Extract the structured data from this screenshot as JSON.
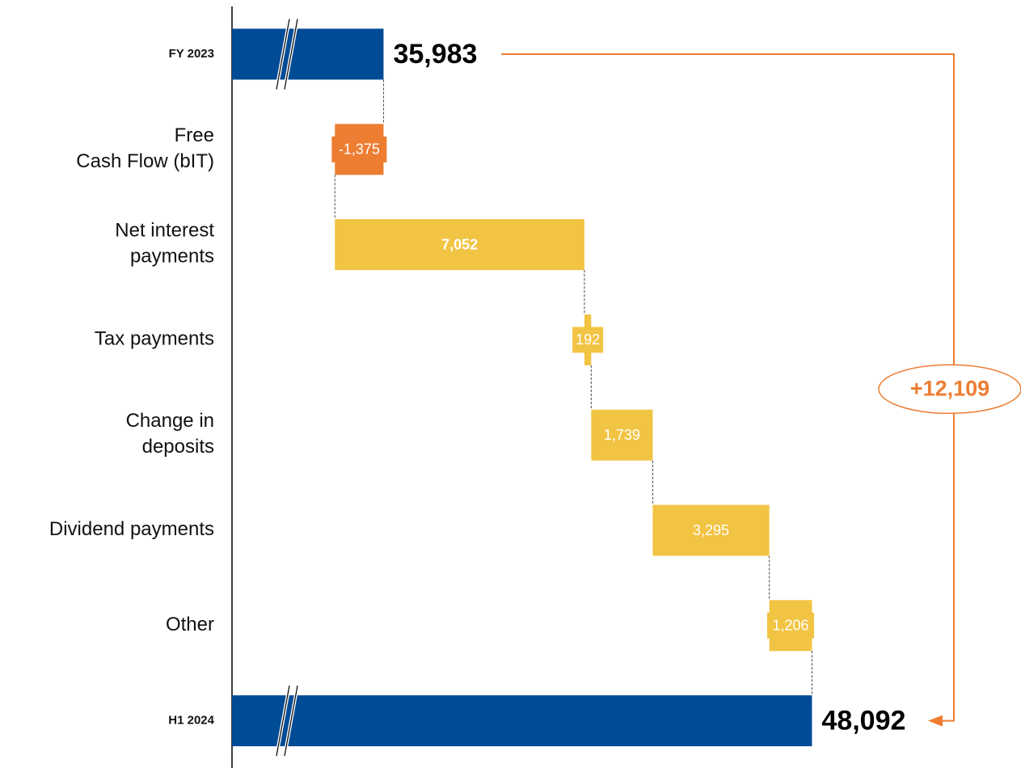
{
  "chart_data": {
    "type": "waterfall",
    "orientation": "horizontal",
    "categories": [
      "FY 2023",
      "Free\nCash Flow (bIT)",
      "Net interest\npayments",
      "Tax payments",
      "Change in\ndeposits",
      "Dividend payments",
      "Other",
      "H1 2024"
    ],
    "values": [
      35983,
      -1375,
      7052,
      192,
      1739,
      3295,
      1206,
      48092
    ],
    "value_labels": [
      "35,983",
      "-1,375",
      "7,052",
      "192",
      "1,739",
      "3,295",
      "1,206",
      "48,092"
    ],
    "totals": [
      true,
      false,
      false,
      false,
      false,
      false,
      false,
      true
    ],
    "colors": {
      "total": "#004b96",
      "negative": "#ed7d31",
      "positive": "#f2c443"
    },
    "xlim": [
      31700,
      54000
    ],
    "annotation": "+12,109",
    "annotation_color": "#ed7d31"
  }
}
